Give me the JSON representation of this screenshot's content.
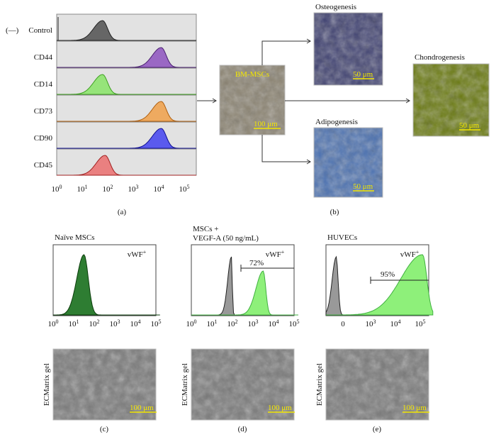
{
  "panel_a": {
    "legend_prefix": "(—)",
    "markers": [
      "Control",
      "CD44",
      "CD14",
      "CD73",
      "CD90",
      "CD45"
    ],
    "axis_ticks": [
      {
        "base": "10",
        "exp": "0"
      },
      {
        "base": "10",
        "exp": "1"
      },
      {
        "base": "10",
        "exp": "2"
      },
      {
        "base": "10",
        "exp": "3"
      },
      {
        "base": "10",
        "exp": "4"
      },
      {
        "base": "10",
        "exp": "5"
      }
    ],
    "label": "(a)"
  },
  "panel_b": {
    "source": {
      "label": "BM-MSCs",
      "scale_bar": "100 μm"
    },
    "osteogenesis": {
      "title": "Osteogenesis",
      "scale_bar": "50 μm"
    },
    "adipogenesis": {
      "title": "Adipogenesis",
      "scale_bar": "50 μm"
    },
    "chondrogenesis": {
      "title": "Chondrogenesis",
      "scale_bar": "50 μm"
    },
    "label": "(b)"
  },
  "panel_c": {
    "title": "Naïve MSCs",
    "marker": {
      "text": "vWF",
      "sup": "+"
    },
    "axis_ticks": [
      {
        "base": "10",
        "exp": "0"
      },
      {
        "base": "10",
        "exp": "1"
      },
      {
        "base": "10",
        "exp": "2"
      },
      {
        "base": "10",
        "exp": "3"
      },
      {
        "base": "10",
        "exp": "4"
      },
      {
        "base": "10",
        "exp": "5"
      }
    ],
    "image_label": "ECMatrix gel",
    "scale_bar": "100 μm",
    "label": "(c)"
  },
  "panel_d": {
    "title_lines": [
      "MSCs +",
      "VEGF-A (50 ng/mL)"
    ],
    "marker": {
      "text": "vWF",
      "sup": "+"
    },
    "gate": "72%",
    "axis_ticks": [
      {
        "base": "10",
        "exp": "0"
      },
      {
        "base": "10",
        "exp": "1"
      },
      {
        "base": "10",
        "exp": "2"
      },
      {
        "base": "10",
        "exp": "3"
      },
      {
        "base": "10",
        "exp": "4"
      },
      {
        "base": "10",
        "exp": "5"
      }
    ],
    "image_label": "ECMatrix gel",
    "scale_bar": "100 μm",
    "label": "(d)"
  },
  "panel_e": {
    "title": "HUVECs",
    "marker": {
      "text": "vWF",
      "sup": "+"
    },
    "gate": "95%",
    "axis_ticks": [
      {
        "base": "0"
      },
      {
        "base": "10",
        "exp": "3"
      },
      {
        "base": "10",
        "exp": "4"
      },
      {
        "base": "10",
        "exp": "5"
      }
    ],
    "image_label": "ECMatrix gel",
    "scale_bar": "100 μm",
    "label": "(e)"
  }
}
